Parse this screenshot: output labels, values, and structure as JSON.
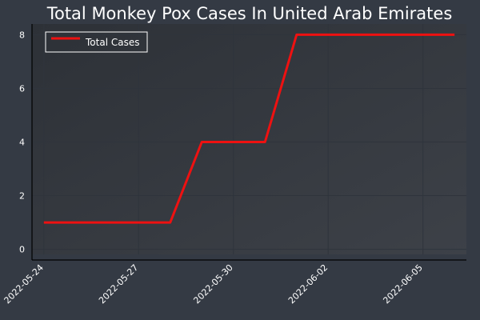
{
  "chart_data": {
    "type": "line",
    "title": "Total Monkey Pox Cases In United Arab Emirates",
    "xlabel": "",
    "ylabel": "",
    "x": [
      "2022-05-24",
      "2022-05-25",
      "2022-05-26",
      "2022-05-27",
      "2022-05-28",
      "2022-05-29",
      "2022-05-30",
      "2022-05-31",
      "2022-06-01",
      "2022-06-02",
      "2022-06-03",
      "2022-06-04",
      "2022-06-05",
      "2022-06-06"
    ],
    "series": [
      {
        "name": "Total Cases",
        "color": "#ee1111",
        "values": [
          1,
          1,
          1,
          1,
          1,
          4,
          4,
          4,
          8,
          8,
          8,
          8,
          8,
          8
        ]
      }
    ],
    "xticks": [
      "2022-05-24",
      "2022-05-27",
      "2022-05-30",
      "2022-06-02",
      "2022-06-05"
    ],
    "yticks": [
      0,
      2,
      4,
      6,
      8
    ],
    "ylim": [
      -0.4,
      8.4
    ],
    "xlim": [
      "2022-05-23T15:00",
      "2022-06-06T09:00"
    ],
    "grid": true,
    "legend": {
      "placement": "top-left"
    },
    "colors": {
      "background": "#343a44",
      "plot_background": "#363b43",
      "grid": "#2f343c",
      "text": "#ffffff"
    }
  }
}
